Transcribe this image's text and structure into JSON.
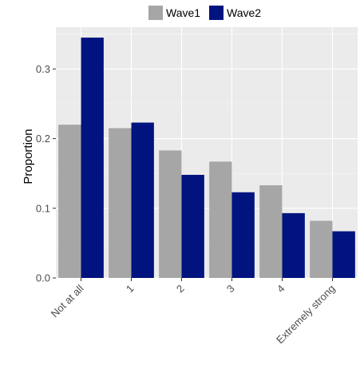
{
  "chart_data": {
    "type": "bar",
    "ylabel": "Proportion",
    "xlabel": "",
    "title": "",
    "categories": [
      "Not at all",
      "1",
      "2",
      "3",
      "4",
      "Extremely strong"
    ],
    "series": [
      {
        "name": "Wave1",
        "color": "#a6a6a6",
        "values": [
          0.22,
          0.215,
          0.183,
          0.167,
          0.133,
          0.082
        ]
      },
      {
        "name": "Wave2",
        "color": "#00137f",
        "values": [
          0.345,
          0.223,
          0.148,
          0.123,
          0.093,
          0.067
        ]
      }
    ],
    "ylim": [
      0,
      0.36
    ],
    "yticks": [
      "0.0",
      "0.1",
      "0.2",
      "0.3"
    ],
    "grid": true,
    "legend_position": "top",
    "background_color": "#ebebeb"
  }
}
